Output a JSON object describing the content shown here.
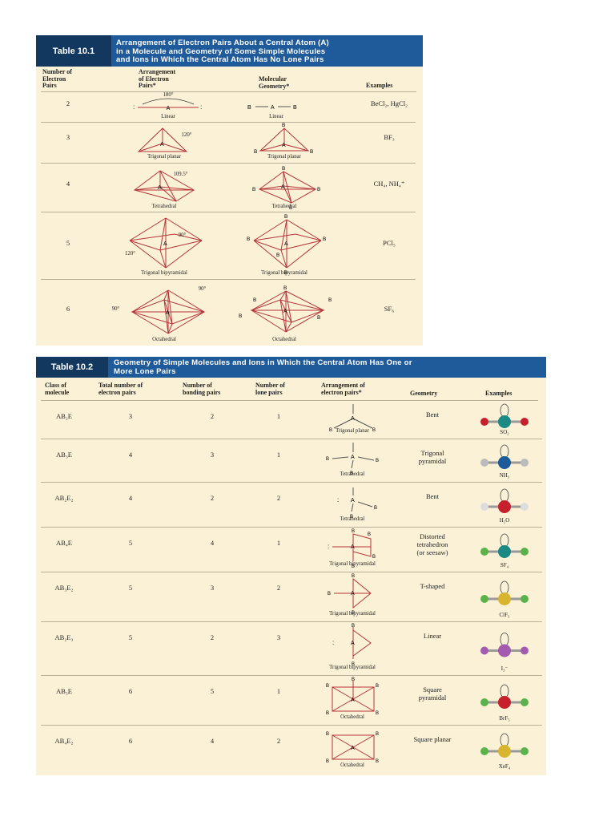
{
  "table1": {
    "number": "Table 10.1",
    "title": [
      "Arrangement of Electron Pairs About a Central Atom (A)",
      "in a Molecule and Geometry of Some Simple Molecules",
      "and Ions in Which the Central Atom Has No Lone Pairs"
    ],
    "headers": {
      "pairs": [
        "Number of",
        "Electron",
        "Pairs"
      ],
      "arrangement": [
        "Arrangement",
        "of Electron",
        "Pairs*"
      ],
      "geometry": [
        "Molecular",
        "Geometry*"
      ],
      "examples": "Examples"
    },
    "rows": [
      {
        "pairs": "2",
        "arrangement": "Linear",
        "geometry": "Linear",
        "examples": "BeCl₂, HgCl₂",
        "angle": "180°"
      },
      {
        "pairs": "3",
        "arrangement": "Trigonal planar",
        "geometry": "Trigonal planar",
        "examples": "BF₃",
        "angle": "120°"
      },
      {
        "pairs": "4",
        "arrangement": "Tetrahedral",
        "geometry": "Tetrahedral",
        "examples": "CH₄, NH₄⁺",
        "angle": "109.5°"
      },
      {
        "pairs": "5",
        "arrangement": "Trigonal bipyramidal",
        "geometry": "Trigonal bipyramidal",
        "examples": "PCl₅",
        "angle": "90°",
        "angle2": "120°"
      },
      {
        "pairs": "6",
        "arrangement": "Octahedral",
        "geometry": "Octahedral",
        "examples": "SF₆",
        "angle": "90°",
        "angle2": "90°"
      }
    ]
  },
  "table2": {
    "number": "Table 10.2",
    "title": [
      "Geometry of Simple Molecules and Ions in Which the Central Atom Has One or",
      "More Lone Pairs"
    ],
    "headers": {
      "class": [
        "Class of",
        "molecule"
      ],
      "total": [
        "Total number of",
        "electron pairs"
      ],
      "bonding": [
        "Number of",
        "bonding pairs"
      ],
      "lone": [
        "Number of",
        "lone pairs"
      ],
      "arrangement": [
        "Arrangement of",
        "electron pairs*"
      ],
      "geometry": "Geometry",
      "examples": "Examples"
    },
    "rows": [
      {
        "cls": "AB₂E",
        "total": "3",
        "bonding": "2",
        "lone": "1",
        "arrangement": "Trigonal planar",
        "geometry": [
          "Bent"
        ],
        "example": "SO₂"
      },
      {
        "cls": "AB₃E",
        "total": "4",
        "bonding": "3",
        "lone": "1",
        "arrangement": "Tetrahedral",
        "geometry": [
          "Trigonal",
          "pyramidal"
        ],
        "example": "NH₃"
      },
      {
        "cls": "AB₂E₂",
        "total": "4",
        "bonding": "2",
        "lone": "2",
        "arrangement": "Tetrahedral",
        "geometry": [
          "Bent"
        ],
        "example": "H₂O"
      },
      {
        "cls": "AB₄E",
        "total": "5",
        "bonding": "4",
        "lone": "1",
        "arrangement": "Trigonal bipyramidal",
        "geometry": [
          "Distorted",
          "tetrahedron",
          "(or seesaw)"
        ],
        "example": "SF₄"
      },
      {
        "cls": "AB₃E₂",
        "total": "5",
        "bonding": "3",
        "lone": "2",
        "arrangement": "Trigonal bipyramidal",
        "geometry": [
          "T-shaped"
        ],
        "example": "ClF₃"
      },
      {
        "cls": "AB₂E₃",
        "total": "5",
        "bonding": "2",
        "lone": "3",
        "arrangement": "Trigonal bipyramidal",
        "geometry": [
          "Linear"
        ],
        "example": "I₃⁻"
      },
      {
        "cls": "AB₅E",
        "total": "6",
        "bonding": "5",
        "lone": "1",
        "arrangement": "Octahedral",
        "geometry": [
          "Square",
          "pyramidal"
        ],
        "example": "BrF₅"
      },
      {
        "cls": "AB₄E₂",
        "total": "6",
        "bonding": "4",
        "lone": "2",
        "arrangement": "Octahedral",
        "geometry": [
          "Square planar"
        ],
        "example": "XeF₄"
      }
    ]
  },
  "labels": {
    "A": "A",
    "B": "B"
  },
  "colors": {
    "header": "#1f5a9a",
    "header_dark": "#13385f",
    "panel": "#fbf1d6",
    "bond": "#b5343a"
  }
}
